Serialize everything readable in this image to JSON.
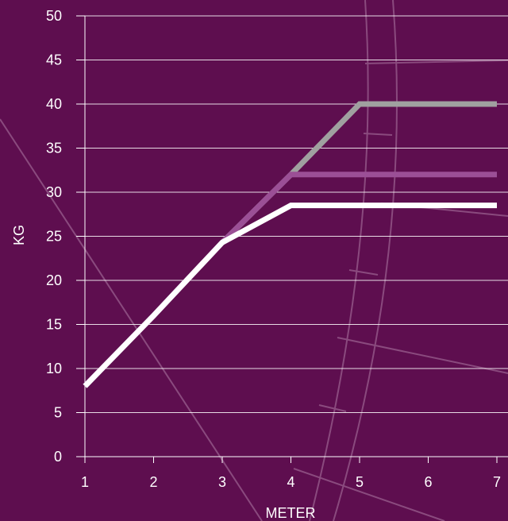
{
  "chart_data": {
    "type": "line",
    "xlabel": "METER",
    "ylabel": "KG",
    "xlim": [
      1,
      7
    ],
    "ylim": [
      0,
      50
    ],
    "x_ticks": [
      1,
      2,
      3,
      4,
      5,
      6,
      7
    ],
    "y_ticks": [
      0,
      5,
      10,
      15,
      20,
      25,
      30,
      35,
      40,
      45,
      50
    ],
    "grid": "horizontal",
    "x": [
      1,
      2,
      3,
      4,
      5,
      6,
      7
    ],
    "series": [
      {
        "values": [
          8,
          16,
          24.3,
          32,
          40,
          40,
          40
        ],
        "color": "#a0a0a0"
      },
      {
        "values": [
          8,
          16,
          24.3,
          32,
          32,
          32,
          32
        ],
        "color": "#9b4f96"
      },
      {
        "values": [
          8,
          16,
          24.3,
          28.5,
          28.5,
          28.5,
          28.5
        ],
        "color": "#ffffff"
      }
    ],
    "colors": {
      "background": "#5e0e4f",
      "grid": "#ffffff",
      "decoration": "#8a4a7e"
    }
  }
}
